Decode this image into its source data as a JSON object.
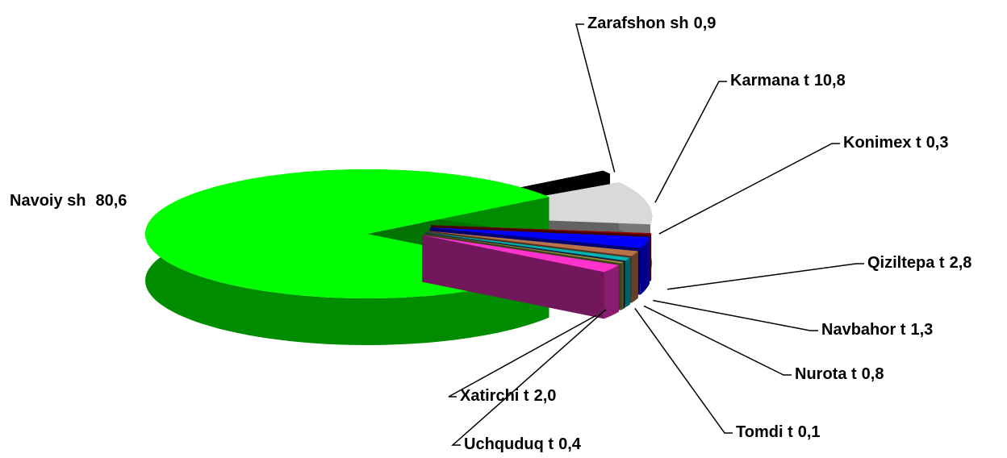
{
  "chart_data": {
    "type": "pie",
    "categories": [
      "Navoiy sh",
      "Zarafshon sh",
      "Karmana t",
      "Konimex t",
      "Qiziltepa t",
      "Navbahor t",
      "Nurota t",
      "Tomdi t",
      "Uchquduq t",
      "Xatirchi t"
    ],
    "values": [
      80.6,
      0.9,
      10.8,
      0.3,
      2.8,
      1.3,
      0.8,
      0.1,
      0.4,
      2.0
    ],
    "value_labels": [
      "80,6",
      "0,9",
      "10,8",
      "0,3",
      "2,8",
      "1,3",
      "0,8",
      "0,1",
      "0,4",
      "2,0"
    ],
    "colors": [
      "#00ff00",
      "#000000",
      "#d9d9d9",
      "#990000",
      "#0000ff",
      "#b8734a",
      "#00b4b4",
      "#33005a",
      "#8c8c3c",
      "#ff33cc"
    ]
  }
}
